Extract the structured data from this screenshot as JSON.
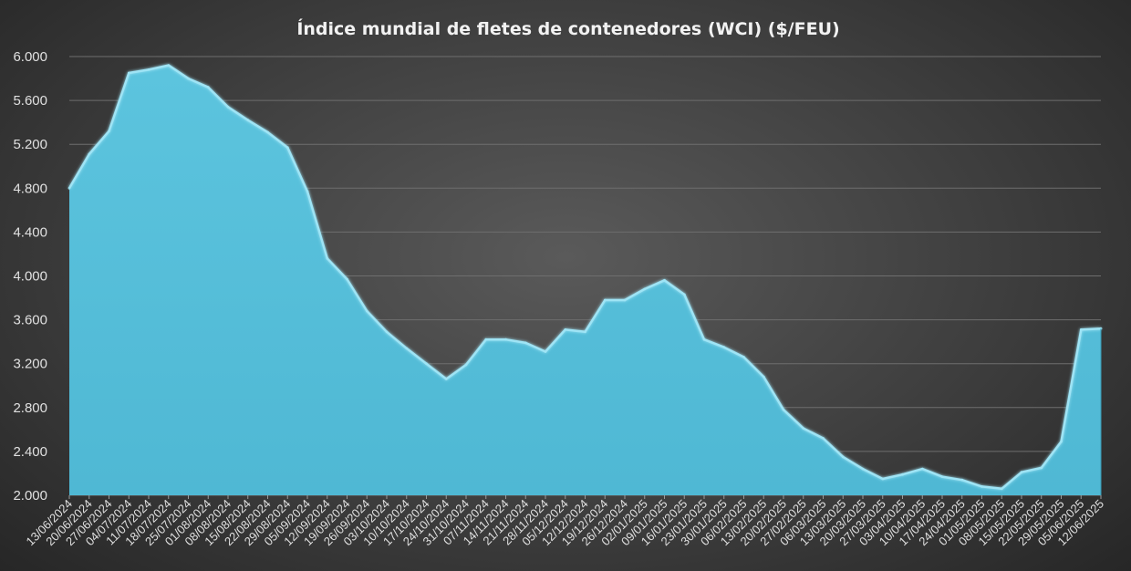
{
  "chart_data": {
    "type": "area",
    "title": "Índice mundial de fletes de contenedores (WCI) ($/FEU)",
    "xlabel": "",
    "ylabel": "",
    "ylim": [
      2000,
      6000
    ],
    "yticks": [
      2000,
      2400,
      2800,
      3200,
      3600,
      4000,
      4400,
      4800,
      5200,
      5600,
      6000
    ],
    "ytick_labels": [
      "2.000",
      "2.400",
      "2.800",
      "3.200",
      "3.600",
      "4.000",
      "4.400",
      "4.800",
      "5.200",
      "5.600",
      "6.000"
    ],
    "grid": true,
    "legend": "none",
    "colors": {
      "fill": "#4fb8d4",
      "line": "#9fe4f5"
    },
    "x": [
      "13/06/2024",
      "20/06/2024",
      "27/06/2024",
      "04/07/2024",
      "11/07/2024",
      "18/07/2024",
      "25/07/2024",
      "01/08/2024",
      "08/08/2024",
      "15/08/2024",
      "22/08/2024",
      "29/08/2024",
      "05/09/2024",
      "12/09/2024",
      "19/09/2024",
      "26/09/2024",
      "03/10/2024",
      "10/10/2024",
      "17/10/2024",
      "24/10/2024",
      "31/10/2024",
      "07/11/2024",
      "14/11/2024",
      "21/11/2024",
      "28/11/2024",
      "05/12/2024",
      "12/12/2024",
      "19/12/2024",
      "26/12/2024",
      "02/01/2025",
      "09/01/2025",
      "16/01/2025",
      "23/01/2025",
      "30/01/2025",
      "06/02/2025",
      "13/02/2025",
      "20/02/2025",
      "27/02/2025",
      "06/03/2025",
      "13/03/2025",
      "20/03/2025",
      "27/03/2025",
      "03/04/2025",
      "10/04/2025",
      "17/04/2025",
      "24/04/2025",
      "01/05/2025",
      "08/05/2025",
      "15/05/2025",
      "22/05/2025",
      "29/05/2025",
      "05/06/2025",
      "12/06/2025"
    ],
    "series": [
      {
        "values": [
          4800,
          5110,
          5320,
          5850,
          5880,
          5920,
          5800,
          5720,
          5540,
          5420,
          5310,
          5170,
          4770,
          4160,
          3970,
          3680,
          3490,
          3340,
          3200,
          3060,
          3190,
          3420,
          3420,
          3390,
          3310,
          3510,
          3490,
          3780,
          3780,
          3880,
          3960,
          3830,
          3420,
          3350,
          3260,
          3080,
          2780,
          2610,
          2520,
          2350,
          2240,
          2150,
          2190,
          2240,
          2170,
          2140,
          2080,
          2060,
          2210,
          2250,
          2490,
          3510,
          3520
        ]
      }
    ]
  }
}
